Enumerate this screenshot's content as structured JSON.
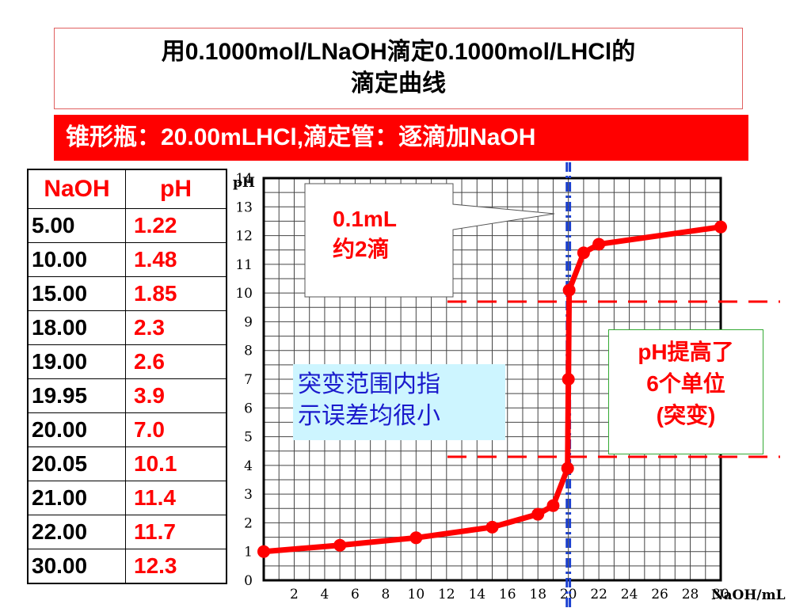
{
  "title": {
    "line1": "用0.1000mol/LNaOH滴定0.1000mol/LHCl的",
    "line2": "滴定曲线"
  },
  "banner": "锥形瓶：20.00mLHCl,滴定管：逐滴加NaOH",
  "table": {
    "headers": [
      "NaOH",
      "pH"
    ],
    "rows": [
      {
        "naoh": "5.00",
        "ph": "1.22"
      },
      {
        "naoh": "10.00",
        "ph": "1.48"
      },
      {
        "naoh": "15.00",
        "ph": "1.85"
      },
      {
        "naoh": "18.00",
        "ph": "2.3"
      },
      {
        "naoh": "19.00",
        "ph": "2.6"
      },
      {
        "naoh": "19.95",
        "ph": "3.9"
      },
      {
        "naoh": "20.00",
        "ph": "7.0"
      },
      {
        "naoh": "20.05",
        "ph": "10.1"
      },
      {
        "naoh": "21.00",
        "ph": "11.4"
      },
      {
        "naoh": "22.00",
        "ph": "11.7"
      },
      {
        "naoh": "30.00",
        "ph": "12.3"
      }
    ]
  },
  "callout": {
    "line1": "0.1mL",
    "line2": "约2滴"
  },
  "blue_note": {
    "line1": "突变范围内指",
    "line2": "示误差均很小"
  },
  "green_note": {
    "line1": "pH提高了",
    "line2": "6个单位",
    "line3": "(突变)"
  },
  "chart_data": {
    "type": "line",
    "xlabel": "NaOH/mL",
    "ylabel": "pH",
    "xlim": [
      0,
      30
    ],
    "ylim": [
      0,
      14
    ],
    "x_ticks": [
      2,
      4,
      6,
      8,
      10,
      12,
      14,
      16,
      18,
      20,
      22,
      24,
      26,
      28,
      30
    ],
    "y_ticks": [
      0,
      1,
      2,
      3,
      4,
      5,
      6,
      7,
      8,
      9,
      10,
      11,
      12,
      13,
      14
    ],
    "series": [
      {
        "color": "#ff0000",
        "x": [
          0.0,
          5.0,
          10.0,
          15.0,
          18.0,
          19.0,
          19.95,
          20.0,
          20.05,
          21.0,
          22.0,
          30.0
        ],
        "y": [
          1.0,
          1.22,
          1.48,
          1.85,
          2.3,
          2.6,
          3.9,
          7.0,
          10.1,
          11.4,
          11.7,
          12.3
        ]
      }
    ],
    "jump_lines_ph": [
      4.3,
      9.7
    ],
    "equivalence_lines_ml": [
      19.9,
      20.1
    ],
    "grid": true
  }
}
